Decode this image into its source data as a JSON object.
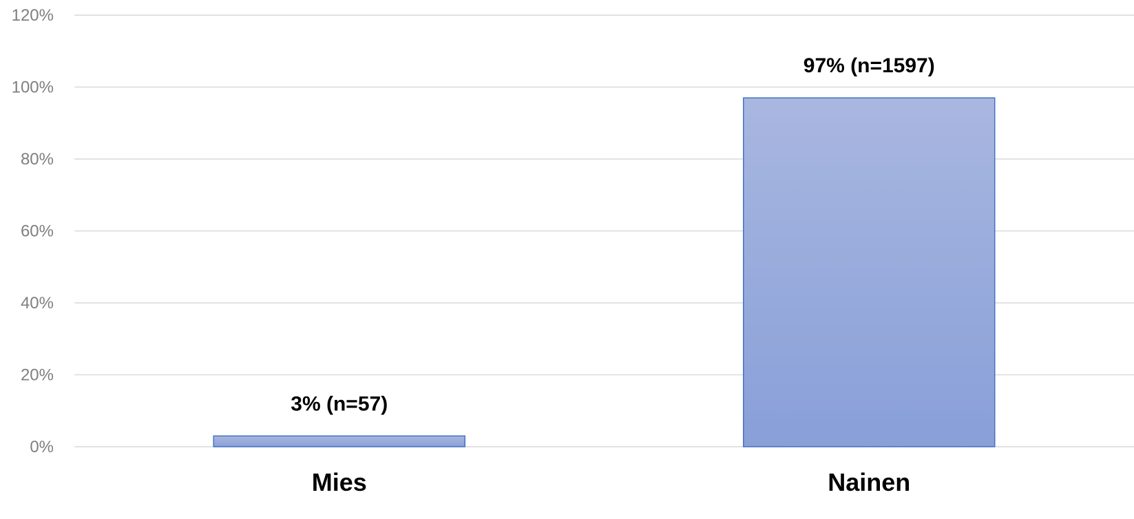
{
  "chart_data": {
    "type": "bar",
    "title": "",
    "xlabel": "",
    "ylabel": "",
    "categories": [
      "Mies",
      "Nainen"
    ],
    "values": [
      3,
      97
    ],
    "data_labels": [
      "3% (n=57)",
      "97% (n=1597)"
    ],
    "ylim": [
      0,
      120
    ],
    "yticks": [
      0,
      20,
      40,
      60,
      80,
      100,
      120
    ],
    "ytick_labels": [
      "0%",
      "20%",
      "40%",
      "60%",
      "80%",
      "100%",
      "120%"
    ],
    "grid": true,
    "legend": "none",
    "colors": {
      "bar_top": "#a9b7e0",
      "bar_bottom": "#889fd8",
      "bar_border": "#4472c4",
      "grid": "#d9d9d9",
      "tick_text": "#7f7f7f"
    }
  }
}
